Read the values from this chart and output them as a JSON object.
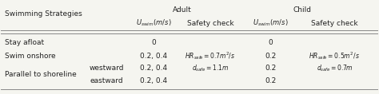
{
  "title_adult": "Adult",
  "title_child": "Child",
  "col_header_swim": "Swimming Strategies",
  "col_header_uswim": "U_{swim}(m/s)",
  "col_header_safety": "Safety check",
  "rows": [
    {
      "strategy": "Stay afloat",
      "sub": "",
      "adult_u": "0",
      "adult_safety": "",
      "child_u": "0",
      "child_safety": ""
    },
    {
      "strategy": "Swim onshore",
      "sub": "",
      "adult_u": "0.2, 0.4",
      "adult_safety": "$HR_{safe}=0.7m^2/s$",
      "child_u": "0.2",
      "child_safety": "$HR_{safe}=0.5m^2/s$"
    },
    {
      "strategy": "Parallel to shoreline",
      "sub": "westward",
      "adult_u": "0.2, 0.4",
      "adult_safety": "$d_{safe}=1.1m$",
      "child_u": "0.2",
      "child_safety": "$d_{safe}=0.7m$"
    },
    {
      "strategy": "",
      "sub": "eastward",
      "adult_u": "0.2, 0.4",
      "adult_safety": "",
      "child_u": "0.2",
      "child_safety": ""
    }
  ],
  "bg_color": "#f5f5f0",
  "line_color": "#888888",
  "text_color": "#222222"
}
